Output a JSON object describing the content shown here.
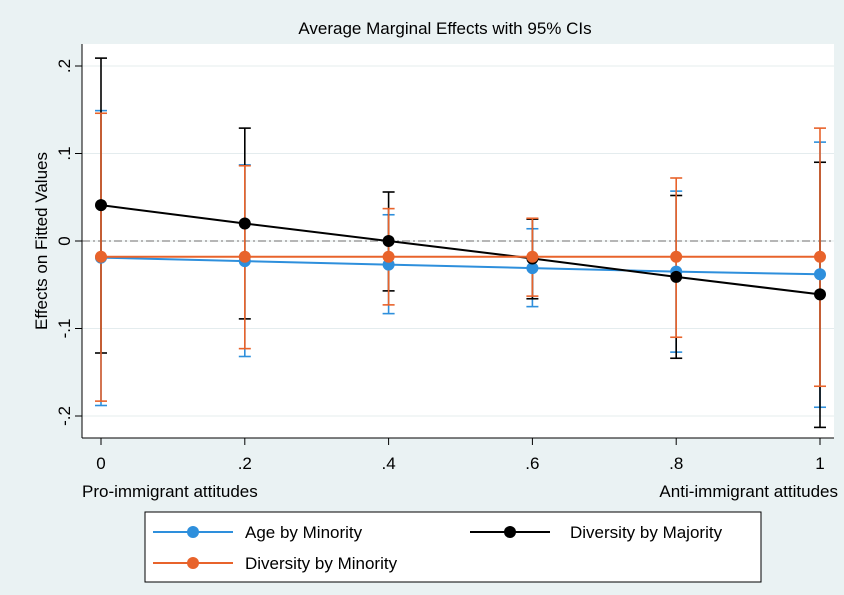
{
  "chart_data": {
    "type": "line",
    "title": "Average Marginal Effects with 95% CIs",
    "ylabel": "Effects on Fitted Values",
    "x_endpoint_labels": {
      "left": "Pro-immigrant attitudes",
      "right": "Anti-immigrant attitudes"
    },
    "x_ticks": [
      0,
      0.2,
      0.4,
      0.6,
      0.8,
      1
    ],
    "x_tick_labels": [
      "0",
      ".2",
      ".4",
      ".6",
      ".8",
      "1"
    ],
    "y_ticks": [
      -0.2,
      -0.1,
      0,
      0.1,
      0.2
    ],
    "y_tick_labels": [
      "-.2",
      "-.1",
      "0",
      ".1",
      ".2"
    ],
    "xlim": [
      0,
      1
    ],
    "ylim": [
      -0.225,
      0.22
    ],
    "grid": true,
    "reference_line_y": 0,
    "legend_position": "bottom",
    "series": [
      {
        "name": "Age by Minority",
        "color": "#2e8fdc",
        "x": [
          0,
          0.2,
          0.4,
          0.6,
          0.8,
          1
        ],
        "y": [
          -0.019,
          -0.023,
          -0.027,
          -0.031,
          -0.035,
          -0.038
        ],
        "lower": [
          -0.188,
          -0.132,
          -0.083,
          -0.075,
          -0.127,
          -0.19
        ],
        "upper": [
          0.149,
          0.087,
          0.03,
          0.014,
          0.057,
          0.113
        ]
      },
      {
        "name": "Diversity by Minority",
        "color": "#e8632b",
        "x": [
          0,
          0.2,
          0.4,
          0.6,
          0.8,
          1
        ],
        "y": [
          -0.018,
          -0.018,
          -0.018,
          -0.018,
          -0.018,
          -0.018
        ],
        "lower": [
          -0.183,
          -0.123,
          -0.073,
          -0.063,
          -0.11,
          -0.166
        ],
        "upper": [
          0.146,
          0.086,
          0.037,
          0.026,
          0.072,
          0.129
        ]
      },
      {
        "name": "Diversity by Majority",
        "color": "#000000",
        "x": [
          0,
          0.2,
          0.4,
          0.6,
          0.8,
          1
        ],
        "y": [
          0.041,
          0.02,
          0.0,
          -0.02,
          -0.041,
          -0.061
        ],
        "lower": [
          -0.128,
          -0.089,
          -0.057,
          -0.066,
          -0.134,
          -0.213
        ],
        "upper": [
          0.209,
          0.129,
          0.056,
          0.025,
          0.052,
          0.09
        ]
      }
    ],
    "legend_order": [
      "Age by Minority",
      "Diversity by Majority",
      "Diversity by Minority"
    ]
  }
}
